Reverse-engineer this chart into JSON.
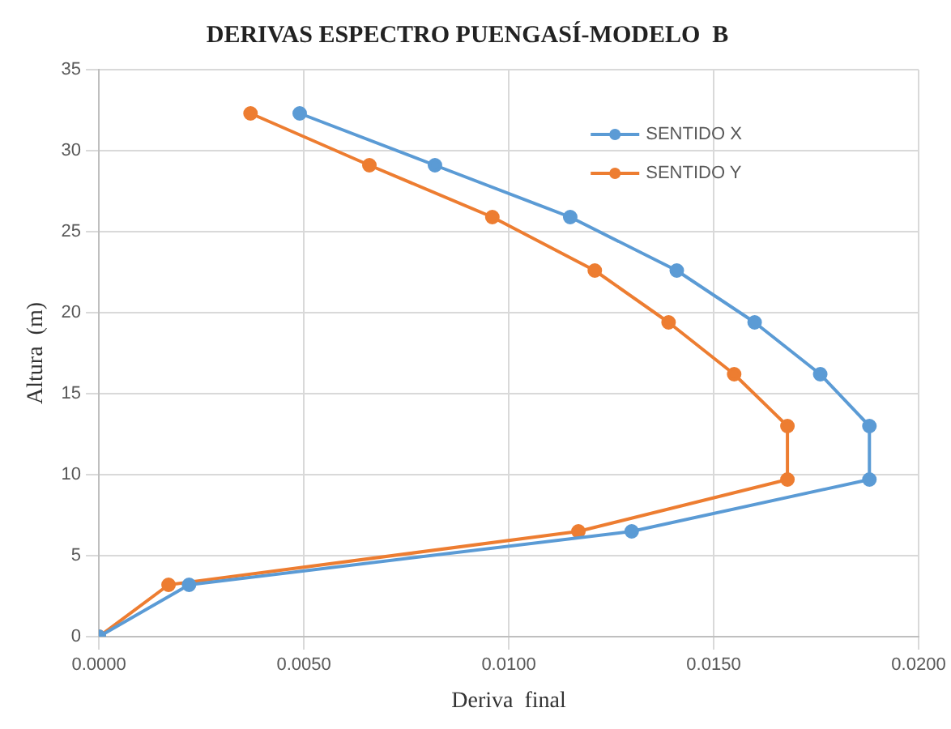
{
  "chart_data": {
    "type": "line",
    "title": "DERIVAS ESPECTRO PUENGASÍ-MODELO  B",
    "xlabel": "Deriva  final",
    "ylabel": "Altura  (m)",
    "xlim": [
      0,
      0.02
    ],
    "xticks": [
      {
        "value": 0,
        "label": "0.0000"
      },
      {
        "value": 0.005,
        "label": "0.0050"
      },
      {
        "value": 0.01,
        "label": "0.0100"
      },
      {
        "value": 0.015,
        "label": "0.0150"
      },
      {
        "value": 0.02,
        "label": "0.0200"
      }
    ],
    "ylim": [
      0,
      35
    ],
    "yticks": [
      0,
      5,
      10,
      15,
      20,
      25,
      30,
      35
    ],
    "grid": true,
    "legend": "top right",
    "marker": "circle",
    "line_style": "solid",
    "series": [
      {
        "name": "SENTIDO X",
        "color": "#5b9bd5",
        "x": [
          0,
          0.0022,
          0.013,
          0.0188,
          0.0188,
          0.0176,
          0.016,
          0.0141,
          0.0115,
          0.0082,
          0.0049
        ],
        "values": [
          0,
          3.2,
          6.5,
          9.7,
          13,
          16.2,
          19.4,
          22.6,
          25.9,
          29.1,
          32.3
        ]
      },
      {
        "name": "SENTIDO Y",
        "color": "#ed7d31",
        "x": [
          0,
          0.0017,
          0.0117,
          0.0168,
          0.0168,
          0.0155,
          0.0139,
          0.0121,
          0.0096,
          0.0066,
          0.0037
        ],
        "values": [
          0,
          3.2,
          6.5,
          9.7,
          13,
          16.2,
          19.4,
          22.6,
          25.9,
          29.1,
          32.3
        ]
      }
    ]
  }
}
